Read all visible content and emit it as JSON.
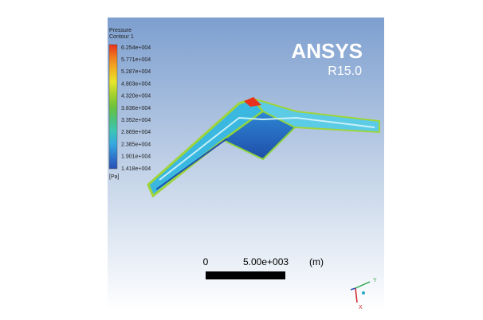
{
  "legend": {
    "title": "Pressure",
    "subtitle": "Contour 1",
    "labels": [
      "6.254e+004",
      "5.771e+004",
      "5.287e+004",
      "4.803e+004",
      "4.320e+004",
      "3.836e+004",
      "3.352e+004",
      "2.869e+004",
      "2.385e+004",
      "1.901e+004",
      "1.418e+004"
    ],
    "unit": "[Pa]"
  },
  "logo": {
    "name": "ANSYS",
    "version": "R15.0"
  },
  "scale_bar": {
    "start": "0",
    "length": "5.00e+003",
    "unit": "(m)"
  },
  "triad": {
    "y": "Y",
    "x": "X"
  }
}
